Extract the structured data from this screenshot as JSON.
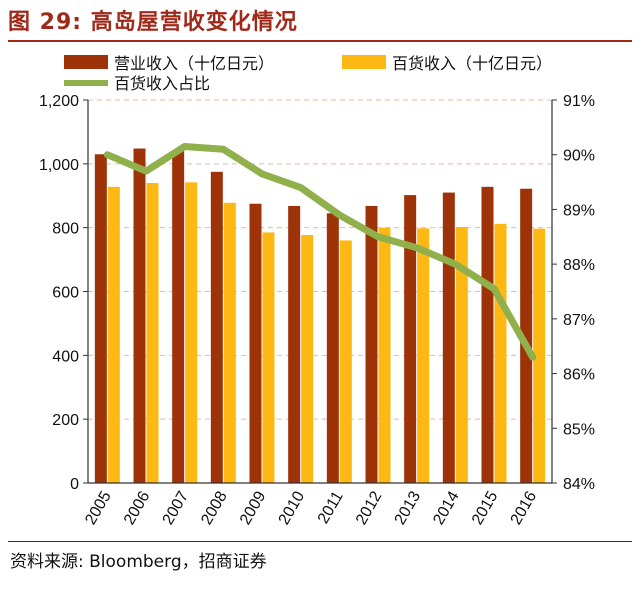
{
  "figure": {
    "title": "图 29:  高岛屋营收变化情况",
    "source": "资料来源:  Bloomberg，招商证券"
  },
  "colors": {
    "revenue": "#9e3208",
    "department_store": "#fdb813",
    "share_line": "#8fb04b",
    "title": "#a0291a"
  },
  "chart_data": {
    "type": "bar",
    "categories": [
      "2005",
      "2006",
      "2007",
      "2008",
      "2009",
      "2010",
      "2011",
      "2012",
      "2013",
      "2014",
      "2015",
      "2016"
    ],
    "series": [
      {
        "name": "营业收入（十亿日元）",
        "type": "bar",
        "axis": "left",
        "values": [
          1030,
          1048,
          1040,
          975,
          875,
          868,
          845,
          868,
          902,
          910,
          928,
          922
        ]
      },
      {
        "name": "百货收入（十亿日元）",
        "type": "bar",
        "axis": "left",
        "values": [
          928,
          940,
          942,
          878,
          785,
          777,
          760,
          800,
          798,
          802,
          812,
          797
        ]
      },
      {
        "name": "百货收入占比",
        "type": "line",
        "axis": "right",
        "values": [
          90.0,
          89.7,
          90.15,
          90.1,
          89.65,
          89.4,
          88.9,
          88.5,
          88.3,
          88.0,
          87.55,
          86.3
        ]
      }
    ],
    "ylim": [
      0,
      1200
    ],
    "yticks": [
      "0",
      "200",
      "400",
      "600",
      "800",
      "1,000",
      "1,200"
    ],
    "y2lim": [
      84,
      91
    ],
    "y2ticks": [
      "84%",
      "85%",
      "86%",
      "87%",
      "88%",
      "89%",
      "90%",
      "91%"
    ],
    "grid": "horizontal dashed",
    "legend": "top"
  }
}
